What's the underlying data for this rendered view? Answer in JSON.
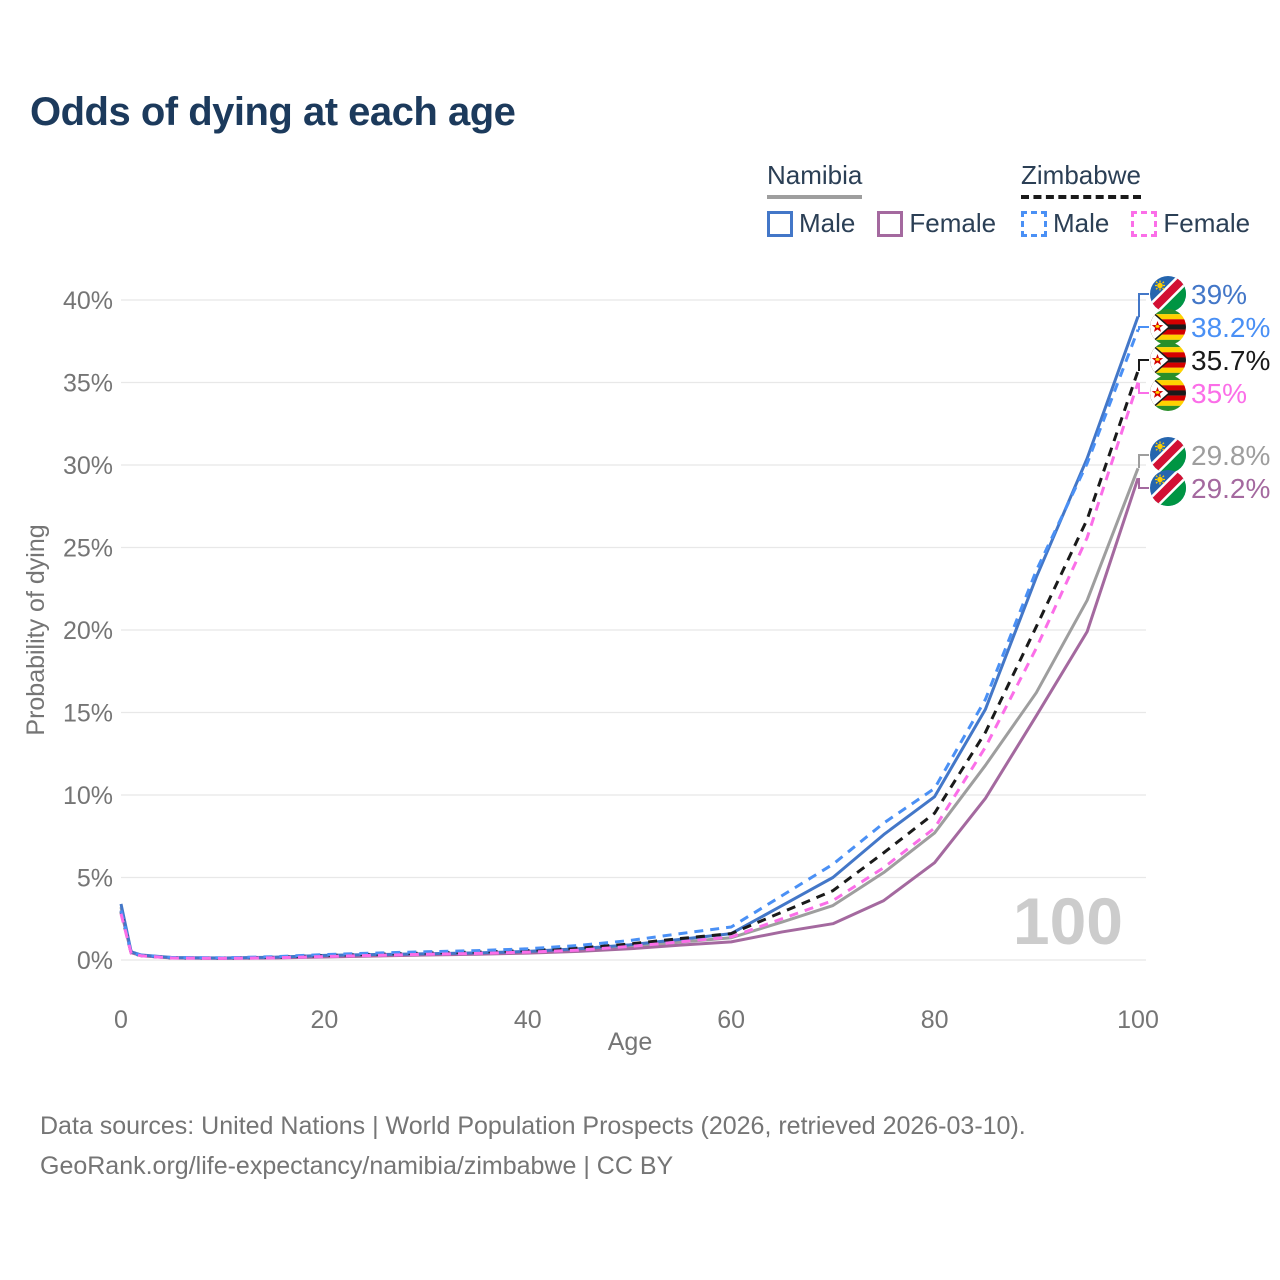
{
  "title": "Odds of dying at each age",
  "watermark_age": "100",
  "colors": {
    "title_text": "#1c3a5c",
    "legend_text": "#2b3f55",
    "text_muted": "#757575",
    "grid": "#e8e8e8",
    "watermark": "#cccccc",
    "namibia_male": "#4377c8",
    "namibia_female": "#a4699f",
    "namibia_both": "#9e9e9e",
    "zimbabwe_male": "#4a90f5",
    "zimbabwe_female": "#fb6ee8",
    "zimbabwe_both": "#1a1a1a"
  },
  "legend": {
    "namibia": {
      "title": "Namibia",
      "male": "Male",
      "female": "Female"
    },
    "zimbabwe": {
      "title": "Zimbabwe",
      "male": "Male",
      "female": "Female"
    }
  },
  "chart_data": {
    "type": "line",
    "title": "Odds of dying at each age",
    "xlabel": "Age",
    "ylabel": "Probability of dying",
    "xlim": [
      0,
      100
    ],
    "ylim": [
      0,
      40
    ],
    "xticks": [
      0,
      20,
      40,
      60,
      80,
      100
    ],
    "yticks": [
      0,
      5,
      10,
      15,
      20,
      25,
      30,
      35,
      40
    ],
    "ytick_suffix": "%",
    "grid": true,
    "legend_position": "top-right",
    "x": [
      0,
      1,
      2,
      5,
      10,
      15,
      20,
      25,
      30,
      35,
      40,
      45,
      50,
      55,
      60,
      65,
      70,
      75,
      80,
      85,
      90,
      95,
      100
    ],
    "series": [
      {
        "id": "namibia-both",
        "name": "Namibia (both sexes)",
        "country": "Namibia",
        "sex": "both",
        "color_key": "namibia_both",
        "dash": false,
        "flag": "namibia",
        "end_label": "29.8%",
        "end_value": 29.8,
        "values": [
          3.2,
          0.47,
          0.28,
          0.13,
          0.11,
          0.15,
          0.24,
          0.3,
          0.35,
          0.4,
          0.47,
          0.6,
          0.8,
          1.08,
          1.35,
          2.3,
          3.3,
          5.3,
          7.7,
          11.8,
          16.2,
          21.8,
          29.8
        ]
      },
      {
        "id": "namibia-female",
        "name": "Namibia Female",
        "country": "Namibia",
        "sex": "female",
        "color_key": "namibia_female",
        "dash": false,
        "flag": "namibia",
        "end_label": "29.2%",
        "end_value": 29.2,
        "values": [
          3.0,
          0.44,
          0.26,
          0.12,
          0.1,
          0.12,
          0.18,
          0.24,
          0.3,
          0.35,
          0.42,
          0.52,
          0.68,
          0.9,
          1.1,
          1.7,
          2.2,
          3.6,
          5.9,
          9.8,
          14.8,
          19.9,
          29.2
        ]
      },
      {
        "id": "namibia-male",
        "name": "Namibia Male",
        "country": "Namibia",
        "sex": "male",
        "color_key": "namibia_male",
        "dash": false,
        "flag": "namibia",
        "end_label": "39%",
        "end_value": 39.0,
        "values": [
          3.4,
          0.5,
          0.3,
          0.15,
          0.12,
          0.17,
          0.28,
          0.33,
          0.38,
          0.43,
          0.52,
          0.68,
          0.92,
          1.25,
          1.6,
          3.3,
          5.0,
          7.6,
          9.9,
          15.2,
          23.2,
          30.4,
          39.0
        ]
      },
      {
        "id": "zimbabwe-both",
        "name": "Zimbabwe (both sexes)",
        "country": "Zimbabwe",
        "sex": "both",
        "color_key": "zimbabwe_both",
        "dash": true,
        "flag": "zimbabwe",
        "end_label": "35.7%",
        "end_value": 35.7,
        "values": [
          2.9,
          0.42,
          0.26,
          0.13,
          0.11,
          0.16,
          0.27,
          0.35,
          0.42,
          0.48,
          0.57,
          0.72,
          0.97,
          1.3,
          1.6,
          2.9,
          4.2,
          6.5,
          8.9,
          13.8,
          20.2,
          26.7,
          35.7
        ]
      },
      {
        "id": "zimbabwe-male",
        "name": "Zimbabwe Male",
        "country": "Zimbabwe",
        "sex": "male",
        "color_key": "zimbabwe_male",
        "dash": true,
        "flag": "zimbabwe",
        "end_label": "38.2%",
        "end_value": 38.2,
        "values": [
          3.0,
          0.45,
          0.28,
          0.15,
          0.13,
          0.2,
          0.33,
          0.42,
          0.5,
          0.57,
          0.68,
          0.88,
          1.18,
          1.6,
          2.0,
          3.9,
          5.8,
          8.3,
          10.4,
          15.8,
          23.6,
          30.1,
          38.2
        ]
      },
      {
        "id": "zimbabwe-female",
        "name": "Zimbabwe Female",
        "country": "Zimbabwe",
        "sex": "female",
        "color_key": "zimbabwe_female",
        "dash": true,
        "flag": "zimbabwe",
        "end_label": "35%",
        "end_value": 35.0,
        "values": [
          2.8,
          0.4,
          0.25,
          0.12,
          0.1,
          0.13,
          0.21,
          0.28,
          0.35,
          0.4,
          0.48,
          0.6,
          0.82,
          1.1,
          1.4,
          2.5,
          3.6,
          5.6,
          8.0,
          12.9,
          18.9,
          25.6,
          35.0
        ]
      }
    ]
  },
  "footer": {
    "line1": "Data sources: United Nations | World Population Prospects (2026, retrieved 2026-03-10).",
    "line2": "GeoRank.org/life-expectancy/namibia/zimbabwe | CC BY"
  }
}
